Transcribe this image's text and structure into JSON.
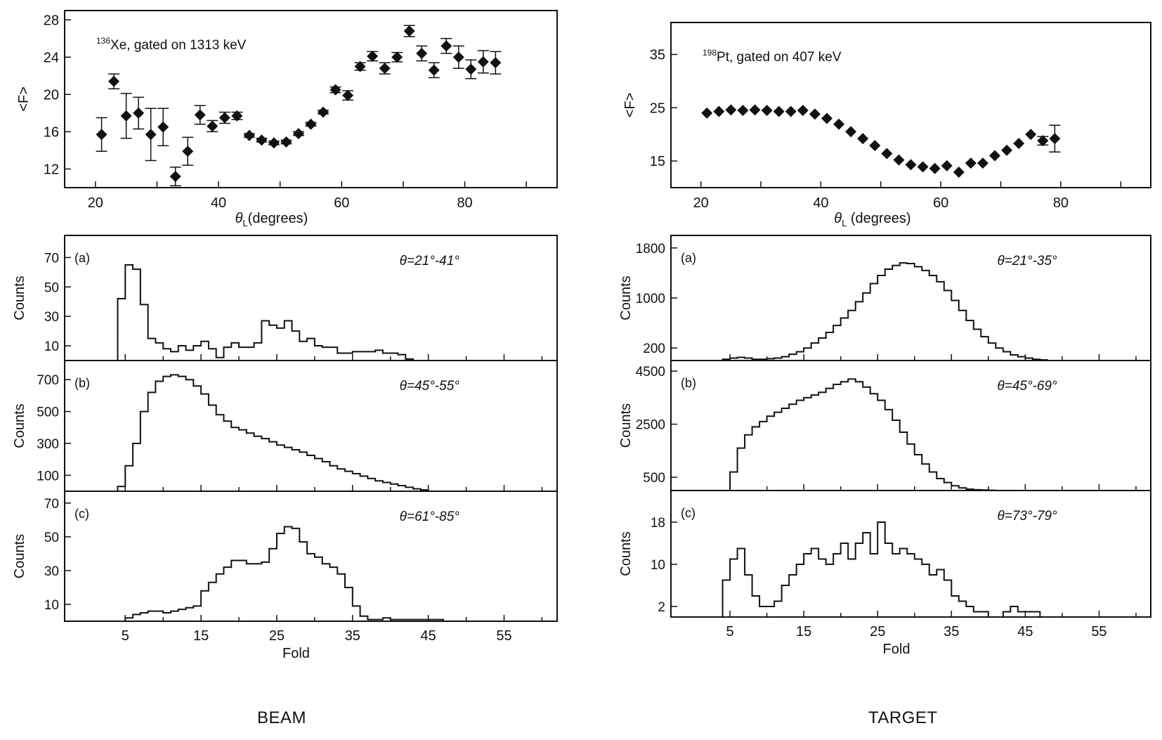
{
  "captions": {
    "left": "BEAM",
    "right": "TARGET"
  },
  "colors": {
    "ink": "#111111",
    "background": "#ffffff"
  },
  "chart_data": [
    {
      "id": "beam-fold-vs-angle",
      "type": "scatter",
      "panel_text": {
        "nucleus_mass": "136",
        "text": "Xe, gated on 1313 keV"
      },
      "xlabel_symbol": "θ",
      "xlabel_sub": "L",
      "xlabel_text": "(degrees)",
      "ylabel": "<F>",
      "xlim": [
        15,
        95
      ],
      "ylim": [
        10,
        29
      ],
      "xticks": [
        20,
        40,
        60,
        80
      ],
      "yticks": [
        12,
        16,
        20,
        24,
        28
      ],
      "points": [
        {
          "x": 21,
          "y": 15.7,
          "err": 1.8
        },
        {
          "x": 23,
          "y": 21.4,
          "err": 0.8
        },
        {
          "x": 25,
          "y": 17.7,
          "err": 2.4
        },
        {
          "x": 27,
          "y": 18.0,
          "err": 1.7
        },
        {
          "x": 29,
          "y": 15.7,
          "err": 2.8
        },
        {
          "x": 31,
          "y": 16.5,
          "err": 2.0
        },
        {
          "x": 33,
          "y": 11.2,
          "err": 1.0
        },
        {
          "x": 35,
          "y": 13.9,
          "err": 1.5
        },
        {
          "x": 37,
          "y": 17.8,
          "err": 1.0
        },
        {
          "x": 39,
          "y": 16.6,
          "err": 0.6
        },
        {
          "x": 41,
          "y": 17.5,
          "err": 0.6
        },
        {
          "x": 43,
          "y": 17.7,
          "err": 0.4
        },
        {
          "x": 45,
          "y": 15.6,
          "err": 0.2
        },
        {
          "x": 47,
          "y": 15.1,
          "err": 0.2
        },
        {
          "x": 49,
          "y": 14.8,
          "err": 0.2
        },
        {
          "x": 51,
          "y": 14.9,
          "err": 0.2
        },
        {
          "x": 53,
          "y": 15.8,
          "err": 0.2
        },
        {
          "x": 55,
          "y": 16.8,
          "err": 0.2
        },
        {
          "x": 57,
          "y": 18.1,
          "err": 0.2
        },
        {
          "x": 59,
          "y": 20.5,
          "err": 0.3
        },
        {
          "x": 61,
          "y": 19.9,
          "err": 0.5
        },
        {
          "x": 63,
          "y": 23.0,
          "err": 0.4
        },
        {
          "x": 65,
          "y": 24.1,
          "err": 0.5
        },
        {
          "x": 67,
          "y": 22.8,
          "err": 0.6
        },
        {
          "x": 69,
          "y": 24.0,
          "err": 0.5
        },
        {
          "x": 71,
          "y": 26.8,
          "err": 0.6
        },
        {
          "x": 73,
          "y": 24.4,
          "err": 0.8
        },
        {
          "x": 75,
          "y": 22.6,
          "err": 0.8
        },
        {
          "x": 77,
          "y": 25.2,
          "err": 0.8
        },
        {
          "x": 79,
          "y": 24.0,
          "err": 1.2
        },
        {
          "x": 81,
          "y": 22.7,
          "err": 1.0
        },
        {
          "x": 83,
          "y": 23.5,
          "err": 1.2
        },
        {
          "x": 85,
          "y": 23.4,
          "err": 1.2
        }
      ]
    },
    {
      "id": "target-fold-vs-angle",
      "type": "scatter",
      "panel_text": {
        "nucleus_mass": "198",
        "text": "Pt, gated on 407 keV"
      },
      "xlabel_symbol": "θ",
      "xlabel_sub": "L",
      "xlabel_text": " (degrees)",
      "ylabel": "<F>",
      "xlim": [
        15,
        95
      ],
      "ylim": [
        10,
        41
      ],
      "xticks": [
        20,
        40,
        60,
        80
      ],
      "yticks": [
        15,
        25,
        35
      ],
      "points": [
        {
          "x": 21,
          "y": 24.0
        },
        {
          "x": 23,
          "y": 24.3
        },
        {
          "x": 25,
          "y": 24.6
        },
        {
          "x": 27,
          "y": 24.5
        },
        {
          "x": 29,
          "y": 24.6
        },
        {
          "x": 31,
          "y": 24.5
        },
        {
          "x": 33,
          "y": 24.3
        },
        {
          "x": 35,
          "y": 24.3
        },
        {
          "x": 37,
          "y": 24.5
        },
        {
          "x": 39,
          "y": 23.8
        },
        {
          "x": 41,
          "y": 23.0
        },
        {
          "x": 43,
          "y": 21.9
        },
        {
          "x": 45,
          "y": 20.5
        },
        {
          "x": 47,
          "y": 19.2
        },
        {
          "x": 49,
          "y": 17.9
        },
        {
          "x": 51,
          "y": 16.4
        },
        {
          "x": 53,
          "y": 15.2
        },
        {
          "x": 55,
          "y": 14.3
        },
        {
          "x": 57,
          "y": 13.9
        },
        {
          "x": 59,
          "y": 13.6
        },
        {
          "x": 61,
          "y": 14.1
        },
        {
          "x": 63,
          "y": 12.9
        },
        {
          "x": 65,
          "y": 14.6
        },
        {
          "x": 67,
          "y": 14.6
        },
        {
          "x": 69,
          "y": 16.0
        },
        {
          "x": 71,
          "y": 17.0
        },
        {
          "x": 73,
          "y": 18.3
        },
        {
          "x": 75,
          "y": 20.0
        },
        {
          "x": 77,
          "y": 18.8,
          "err": 0.8
        },
        {
          "x": 79,
          "y": 19.2,
          "err": 2.5
        }
      ]
    },
    {
      "id": "beam-a",
      "type": "histogram",
      "panel": "(a)",
      "angle_label": "θ=21°-41°",
      "xlim": [
        -3,
        62
      ],
      "ylim": [
        0,
        85
      ],
      "yticks": [
        10,
        30,
        50,
        70
      ],
      "xticks": [
        5,
        15,
        25,
        35,
        45,
        55
      ],
      "ylabel": "Counts",
      "bin_start": 4,
      "bin_width": 1,
      "values": [
        42,
        65,
        62,
        38,
        15,
        12,
        8,
        6,
        10,
        7,
        10,
        13,
        8,
        2,
        9,
        12,
        9,
        9,
        12,
        27,
        24,
        22,
        27,
        20,
        13,
        15,
        10,
        9,
        9,
        5,
        5,
        6,
        6,
        6,
        7,
        5,
        5,
        4,
        1
      ]
    },
    {
      "id": "beam-b",
      "type": "histogram",
      "panel": "(b)",
      "angle_label": "θ=45°-55°",
      "xlim": [
        -3,
        62
      ],
      "ylim": [
        0,
        820
      ],
      "yticks": [
        100,
        300,
        500,
        700
      ],
      "xticks": [
        5,
        15,
        25,
        35,
        45,
        55
      ],
      "ylabel": "Counts",
      "bin_start": 4,
      "bin_width": 1,
      "values": [
        30,
        160,
        300,
        500,
        620,
        690,
        720,
        730,
        720,
        700,
        660,
        610,
        540,
        480,
        440,
        400,
        385,
        365,
        345,
        330,
        310,
        290,
        275,
        260,
        245,
        225,
        205,
        185,
        160,
        140,
        125,
        110,
        95,
        80,
        65,
        55,
        45,
        35,
        25,
        15,
        8
      ]
    },
    {
      "id": "beam-c",
      "type": "histogram",
      "panel": "(c)",
      "angle_label": "θ=61°-85°",
      "xlim": [
        -3,
        62
      ],
      "ylim": [
        0,
        77
      ],
      "yticks": [
        10,
        30,
        50,
        70
      ],
      "xticks": [
        5,
        15,
        25,
        35,
        45,
        55
      ],
      "ylabel": "Counts",
      "bin_start": 5,
      "bin_width": 1,
      "values": [
        2,
        4,
        5,
        6,
        6,
        5,
        6,
        7,
        8,
        9,
        18,
        23,
        28,
        32,
        36,
        36,
        34,
        34,
        35,
        43,
        52,
        56,
        55,
        47,
        40,
        38,
        34,
        32,
        28,
        20,
        9,
        3,
        1,
        1,
        2,
        1,
        1,
        1,
        1,
        1,
        1,
        1
      ]
    },
    {
      "id": "target-a",
      "type": "histogram",
      "panel": "(a)",
      "angle_label": "θ=21°-35°",
      "xlim": [
        -3,
        62
      ],
      "ylim": [
        0,
        2000
      ],
      "yticks": [
        200,
        1000,
        1800
      ],
      "xticks": [
        5,
        15,
        25,
        35,
        45,
        55
      ],
      "ylabel": "Counts",
      "bin_start": 4,
      "bin_width": 1,
      "values": [
        20,
        40,
        50,
        40,
        20,
        20,
        30,
        40,
        60,
        100,
        140,
        200,
        280,
        360,
        450,
        560,
        680,
        800,
        940,
        1080,
        1230,
        1360,
        1460,
        1520,
        1560,
        1550,
        1500,
        1440,
        1360,
        1260,
        1120,
        960,
        800,
        640,
        500,
        380,
        280,
        200,
        140,
        90,
        60,
        40,
        20,
        10
      ]
    },
    {
      "id": "target-b",
      "type": "histogram",
      "panel": "(b)",
      "angle_label": "θ=45°-69°",
      "xlim": [
        -3,
        62
      ],
      "ylim": [
        0,
        4900
      ],
      "yticks": [
        500,
        2500,
        4500
      ],
      "xticks": [
        5,
        15,
        25,
        35,
        45,
        55
      ],
      "ylabel": "Counts",
      "bin_start": 5,
      "bin_width": 1,
      "values": [
        700,
        1600,
        2100,
        2400,
        2600,
        2800,
        2950,
        3100,
        3250,
        3400,
        3500,
        3600,
        3700,
        3850,
        4000,
        4100,
        4200,
        4100,
        3900,
        3650,
        3400,
        3050,
        2650,
        2200,
        1750,
        1350,
        1000,
        700,
        450,
        300,
        180,
        100,
        50,
        30,
        20,
        10
      ]
    },
    {
      "id": "target-c",
      "type": "histogram",
      "panel": "(c)",
      "angle_label": "θ=73°-79°",
      "xlim": [
        -3,
        62
      ],
      "ylim": [
        0,
        24
      ],
      "yticks": [
        2,
        10,
        18
      ],
      "xticks": [
        5,
        15,
        25,
        35,
        45,
        55
      ],
      "ylabel": "Counts",
      "bin_start": 4,
      "bin_width": 1,
      "values": [
        7,
        11,
        13,
        8,
        4,
        2,
        2,
        3,
        6,
        8,
        10,
        12,
        13,
        11,
        10,
        12,
        14,
        11,
        14,
        16,
        12,
        18,
        14,
        12,
        13,
        12,
        11,
        10,
        8,
        9,
        7,
        4,
        3,
        2,
        1,
        1,
        0,
        0,
        1,
        2,
        1,
        1,
        1
      ]
    }
  ]
}
